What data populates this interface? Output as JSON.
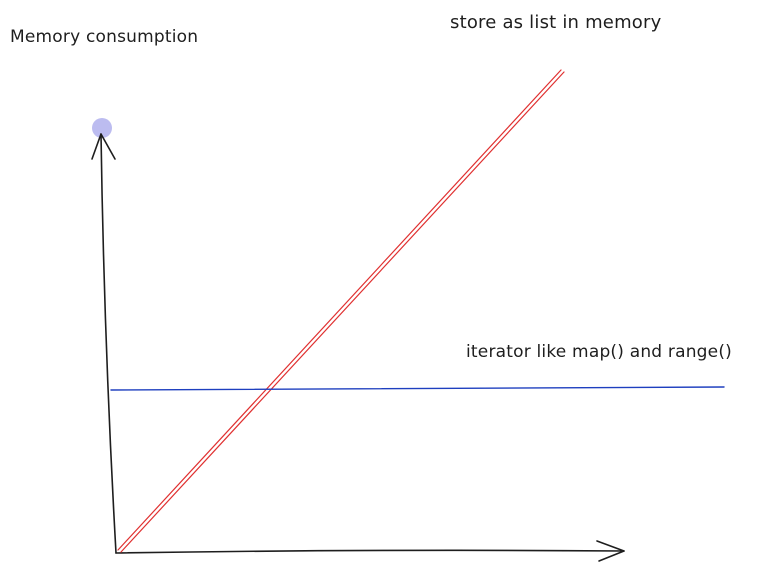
{
  "diagram": {
    "y_axis_label": "Memory consumption",
    "list_label": "store as list in memory",
    "iterator_label": "iterator like map() and range()"
  },
  "colors": {
    "axis": "#1e1e1e",
    "list_line": "#e03131",
    "iterator_line": "#1e3fbf",
    "selection_handle": "#bcbcf0"
  },
  "icons": {
    "y_arrow": "arrow-up-icon",
    "x_arrow": "arrow-right-icon",
    "handle": "selection-handle-dot"
  }
}
